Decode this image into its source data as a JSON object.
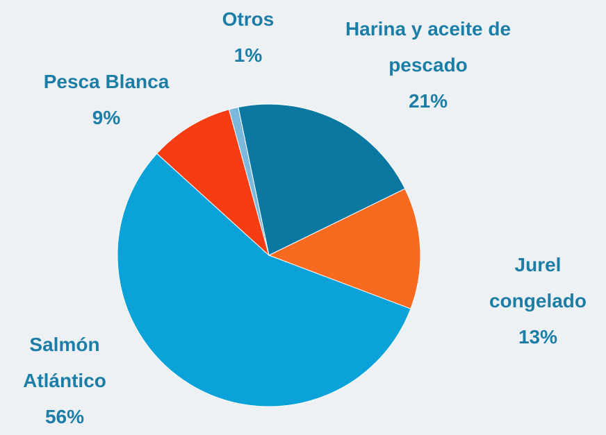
{
  "chart_data": {
    "type": "pie",
    "categories": [
      "Harina y aceite de pescado",
      "Jurel congelado",
      "Salmón Atlántico",
      "Pesca Blanca",
      "Otros"
    ],
    "values": [
      21,
      13,
      56,
      9,
      1
    ],
    "value_labels": [
      "21%",
      "13%",
      "56%",
      "9%",
      "1%"
    ],
    "colors": [
      "#0b78a2",
      "#f86a1f",
      "#0ba1d9",
      "#f63c12",
      "#7cb8dc"
    ]
  }
}
